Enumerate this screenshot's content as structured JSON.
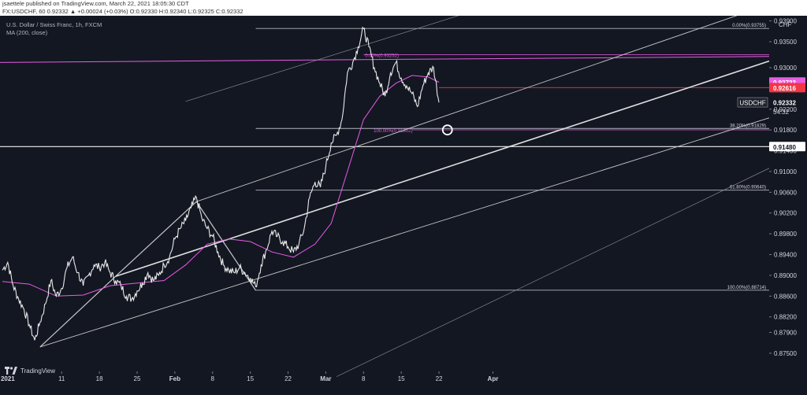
{
  "header": {
    "line1": "jsaettele published on TradingView.com, March 22, 2021 18:05:30 CDT",
    "line2": "FX:USDCHF, 60  0.92332  ▲ +0.00024 (+0.03%)  O:0.92330  H:0.92340  L:0.92325  C:0.92332"
  },
  "legend": {
    "symbol_title": "U.S. Dollar / Swiss Franc, 1h, FXCM",
    "indicator": "MA (200, close)"
  },
  "brand": {
    "name": "TradingView",
    "icon": "tradingview-logo-icon"
  },
  "colors": {
    "background": "#131722",
    "price": "#e8e8e8",
    "ma": "#e85ce3",
    "trend_lines": "#9598a1",
    "fib_lines": "#b2b5be",
    "magenta_lines": "#e85ce3",
    "red_label": "#f23645",
    "support": "#f0f0f0"
  },
  "chart_data": {
    "type": "line",
    "symbol": "USDCHF",
    "timeframe": "1h",
    "x_ticks": [
      "2021",
      "11",
      "18",
      "25",
      "Feb",
      "8",
      "15",
      "22",
      "Mar",
      "8",
      "15",
      "22",
      "Apr"
    ],
    "y_ticks": [
      "0.87500",
      "0.87900",
      "0.88200",
      "0.88600",
      "0.89000",
      "0.89400",
      "0.89800",
      "0.90200",
      "0.90600",
      "0.91000",
      "0.91400",
      "0.91800",
      "0.92200",
      "0.92600",
      "0.93000",
      "0.93500",
      "0.93900"
    ],
    "ylim": [
      0.8715,
      0.94
    ],
    "currency_label": "CHF",
    "last_price": {
      "label": "USDCHF",
      "value": "0.92332",
      "countdown": "54:32"
    },
    "price_badges": [
      {
        "value": "0.92723",
        "color": "#e85ce3"
      },
      {
        "value": "0.92616",
        "color": "#f23645"
      }
    ],
    "level_badge": {
      "value": "0.91480"
    },
    "fib_labels": [
      "0.00%(0.93755)",
      "38.20%(0.91829)",
      "61.80%(0.90640)",
      "100.00%(0.88714)"
    ],
    "fib_magenta_labels": [
      "0.00%(0.93252)",
      "100.00%(0.91802)"
    ],
    "price_path": [
      [
        "12-31",
        0.891
      ],
      [
        "01-01",
        0.8925
      ],
      [
        "01-02",
        0.888
      ],
      [
        "01-03",
        0.8855
      ],
      [
        "01-04",
        0.8835
      ],
      [
        "01-05",
        0.8805
      ],
      [
        "01-06",
        0.8775
      ],
      [
        "01-07",
        0.881
      ],
      [
        "01-08",
        0.8845
      ],
      [
        "01-09",
        0.889
      ],
      [
        "01-10",
        0.886
      ],
      [
        "01-11",
        0.8875
      ],
      [
        "01-12",
        0.8915
      ],
      [
        "01-13",
        0.8935
      ],
      [
        "01-14",
        0.8905
      ],
      [
        "01-15",
        0.888
      ],
      [
        "01-16",
        0.89
      ],
      [
        "01-17",
        0.892
      ],
      [
        "01-18",
        0.8915
      ],
      [
        "01-19",
        0.8925
      ],
      [
        "01-20",
        0.8905
      ],
      [
        "01-21",
        0.889
      ],
      [
        "01-22",
        0.888
      ],
      [
        "01-23",
        0.886
      ],
      [
        "01-24",
        0.8855
      ],
      [
        "01-25",
        0.887
      ],
      [
        "01-26",
        0.8885
      ],
      [
        "01-27",
        0.8905
      ],
      [
        "01-28",
        0.889
      ],
      [
        "01-29",
        0.89
      ],
      [
        "01-30",
        0.892
      ],
      [
        "01-31",
        0.8935
      ],
      [
        "02-01",
        0.897
      ],
      [
        "02-02",
        0.899
      ],
      [
        "02-03",
        0.9005
      ],
      [
        "02-04",
        0.903
      ],
      [
        "02-05",
        0.905
      ],
      [
        "02-06",
        0.901
      ],
      [
        "02-07",
        0.899
      ],
      [
        "02-08",
        0.8975
      ],
      [
        "02-09",
        0.8945
      ],
      [
        "02-10",
        0.892
      ],
      [
        "02-11",
        0.891
      ],
      [
        "02-12",
        0.8905
      ],
      [
        "02-13",
        0.8915
      ],
      [
        "02-14",
        0.8905
      ],
      [
        "02-15",
        0.8895
      ],
      [
        "02-16",
        0.8878
      ],
      [
        "02-17",
        0.892
      ],
      [
        "02-18",
        0.895
      ],
      [
        "02-19",
        0.8985
      ],
      [
        "02-20",
        0.8975
      ],
      [
        "02-21",
        0.8965
      ],
      [
        "02-22",
        0.8955
      ],
      [
        "02-23",
        0.8945
      ],
      [
        "02-24",
        0.896
      ],
      [
        "02-25",
        0.899
      ],
      [
        "02-26",
        0.905
      ],
      [
        "02-27",
        0.908
      ],
      [
        "02-28",
        0.907
      ],
      [
        "03-01",
        0.911
      ],
      [
        "03-02",
        0.9155
      ],
      [
        "03-03",
        0.917
      ],
      [
        "03-04",
        0.92
      ],
      [
        "03-05",
        0.929
      ],
      [
        "03-06",
        0.931
      ],
      [
        "03-07",
        0.934
      ],
      [
        "03-08",
        0.9375
      ],
      [
        "03-09",
        0.934
      ],
      [
        "03-10",
        0.93
      ],
      [
        "03-11",
        0.927
      ],
      [
        "03-12",
        0.9245
      ],
      [
        "03-13",
        0.929
      ],
      [
        "03-14",
        0.931
      ],
      [
        "03-15",
        0.928
      ],
      [
        "03-16",
        0.9265
      ],
      [
        "03-17",
        0.925
      ],
      [
        "03-18",
        0.9225
      ],
      [
        "03-19",
        0.9265
      ],
      [
        "03-20",
        0.929
      ],
      [
        "03-21",
        0.93
      ],
      [
        "03-22",
        0.9233
      ]
    ],
    "ma200_path": [
      [
        "12-31",
        0.8888
      ],
      [
        "01-05",
        0.8883
      ],
      [
        "01-10",
        0.886
      ],
      [
        "01-15",
        0.8862
      ],
      [
        "01-20",
        0.888
      ],
      [
        "01-25",
        0.8885
      ],
      [
        "01-30",
        0.889
      ],
      [
        "02-03",
        0.892
      ],
      [
        "02-07",
        0.896
      ],
      [
        "02-11",
        0.897
      ],
      [
        "02-15",
        0.8965
      ],
      [
        "02-19",
        0.8945
      ],
      [
        "02-23",
        0.8935
      ],
      [
        "02-27",
        0.896
      ],
      [
        "03-02",
        0.9
      ],
      [
        "03-05",
        0.91
      ],
      [
        "03-08",
        0.92
      ],
      [
        "03-11",
        0.9245
      ],
      [
        "03-14",
        0.927
      ],
      [
        "03-17",
        0.9285
      ],
      [
        "03-20",
        0.9282
      ],
      [
        "03-22",
        0.9272
      ]
    ],
    "annotations": [
      {
        "kind": "swing-line",
        "from": [
          "01-07",
          0.8762
        ],
        "to": [
          "01-21",
          0.8898
        ]
      },
      {
        "kind": "swing-line",
        "from": [
          "01-21",
          0.8898
        ],
        "to": [
          "02-05",
          0.9042
        ]
      },
      {
        "kind": "swing-line",
        "from": [
          "02-05",
          0.9042
        ],
        "to": [
          "02-16",
          0.8871
        ]
      },
      {
        "kind": "channel-upper",
        "from": [
          "02-05",
          0.9042
        ],
        "to": [
          "03-24",
          0.921
        ]
      },
      {
        "kind": "channel-lower",
        "from": [
          "01-07",
          0.8762
        ],
        "to": [
          "03-24",
          0.901
        ]
      },
      {
        "kind": "channel-mid",
        "from": [
          "01-21",
          0.8898
        ],
        "to": [
          "03-24",
          0.911
        ]
      },
      {
        "kind": "channel-far-upper",
        "from": [
          "02-03",
          0.9235
        ],
        "to": [
          "03-24",
          0.9395
        ]
      },
      {
        "kind": "channel-far-lower",
        "from": [
          "03-03",
          0.8705
        ],
        "to": [
          "03-24",
          0.881
        ]
      },
      {
        "kind": "target-circle",
        "at": [
          "03-24",
          0.918
        ]
      }
    ]
  }
}
